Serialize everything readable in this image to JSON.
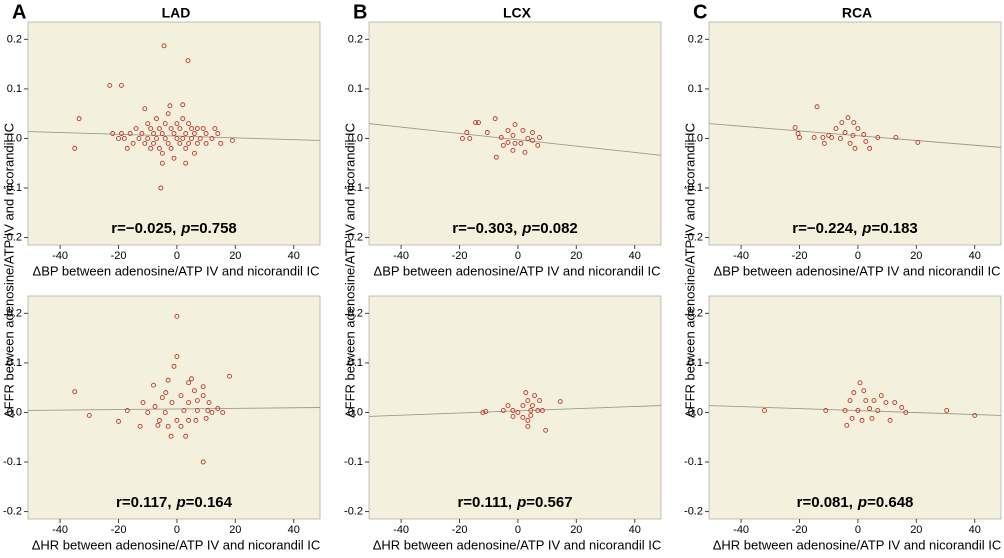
{
  "chart_data": [
    {
      "type": "scatter",
      "letter": "A",
      "title": "LAD",
      "y_label": "ΔFFR between adenosine/ATP IV and nicorandil IC",
      "x_label": "ΔBP between adenosine/ATP IV and nicorandil IC",
      "annotation": {
        "r": "r=−0.025,",
        "p": "p",
        "p_value": "=0.758"
      },
      "color": "#c0392b",
      "x": [
        -4.4,
        3.8,
        -23,
        -19,
        -33.5,
        -35,
        -11,
        -2.4,
        2,
        -5,
        -5.5,
        19,
        -22,
        -20,
        -18,
        -16,
        -15,
        -14,
        -13,
        -12,
        -11,
        -10,
        -10,
        -9,
        -9,
        -8,
        -8,
        -7,
        -7,
        -6,
        -6,
        -5,
        -5,
        -4,
        -4,
        -3,
        -3,
        -2,
        -2,
        -1,
        -1,
        0,
        0,
        1,
        1,
        2,
        2,
        3,
        3,
        4,
        4,
        5,
        5,
        6,
        6,
        7,
        7,
        8,
        9,
        10,
        10,
        12,
        13,
        14,
        15,
        -17,
        -19,
        3
      ],
      "values": [
        0.187,
        0.157,
        0.107,
        0.107,
        0.04,
        -0.02,
        0.06,
        0.066,
        0.068,
        -0.05,
        -0.1,
        -0.004,
        0.01,
        0,
        0,
        0.01,
        -0.01,
        0.02,
        0,
        0.01,
        -0.01,
        0.03,
        0,
        0.02,
        -0.02,
        0.01,
        -0.01,
        0.04,
        0,
        0.02,
        -0.02,
        0.01,
        -0.03,
        0.03,
        0,
        0.05,
        -0.01,
        0.02,
        -0.02,
        0.01,
        -0.04,
        0.03,
        0,
        0.02,
        -0.01,
        0.04,
        0,
        0.01,
        -0.02,
        0.03,
        -0.01,
        0.02,
        0,
        0.01,
        -0.03,
        0.02,
        -0.01,
        0,
        0.02,
        0.01,
        -0.01,
        0,
        0.02,
        0.01,
        -0.01,
        -0.02,
        0.01,
        -0.05
      ],
      "trend": {
        "x": [
          -51,
          49
        ],
        "values": [
          0.014,
          -0.004
        ]
      },
      "xlim": [
        -51,
        49
      ],
      "ylim": [
        -0.215,
        0.235
      ],
      "xticks": [
        -40,
        -20,
        0,
        20,
        40
      ],
      "yticks": [
        -0.2,
        -0.1,
        {
          "value": 0,
          "label": "0.0"
        },
        0.1,
        0.2
      ]
    },
    {
      "type": "scatter",
      "letter": "B",
      "title": "LCX",
      "y_label": "ΔFFR between adenosine/ATP IV and nicorandil IC",
      "x_label": "ΔBP between adenosine/ATP IV and nicorandil IC",
      "annotation": {
        "r": "r=−0.303,",
        "p": "p",
        "p_value": "=0.082"
      },
      "color": "#c0392b",
      "x": [
        -14.5,
        -13.5,
        -7.8,
        -17.5,
        -19,
        -16.5,
        -10.5,
        -7.4,
        -1,
        -3.4,
        -1.7,
        1.7,
        5,
        6.8,
        -5,
        -1.7,
        1,
        3.4,
        -5.7,
        5,
        7.4,
        -1,
        2.4,
        -3.4
      ],
      "values": [
        0.032,
        0.032,
        0.04,
        0.012,
        0,
        0,
        0.012,
        -0.038,
        0.028,
        0.016,
        0.006,
        0.016,
        0.012,
        -0.014,
        -0.014,
        -0.024,
        -0.01,
        0,
        0.002,
        -0.004,
        0.002,
        -0.01,
        -0.028,
        -0.008
      ],
      "trend": {
        "x": [
          -51,
          49
        ],
        "values": [
          0.03,
          -0.034
        ]
      },
      "xlim": [
        -51,
        49
      ],
      "ylim": [
        -0.215,
        0.235
      ],
      "xticks": [
        -40,
        -20,
        0,
        20,
        40
      ],
      "yticks": [
        -0.2,
        -0.1,
        {
          "value": 0,
          "label": "0.0"
        },
        0.1,
        0.2
      ]
    },
    {
      "type": "scatter",
      "letter": "C",
      "title": "RCA",
      "y_label": "ΔFFR between adenosine/ATP IV and nicorandil IC",
      "x_label": "ΔBP between adenosine/ATP IV and nicorandil IC",
      "annotation": {
        "r": "r=−0.224,",
        "p": "p",
        "p_value": "=0.183"
      },
      "color": "#c0392b",
      "x": [
        -14,
        -21.5,
        -20.5,
        -20,
        -15,
        -12,
        -11.5,
        -9,
        -5.5,
        -3.4,
        -1.4,
        -7.5,
        -4.4,
        -1.7,
        0,
        2,
        -2.7,
        -1,
        2.7,
        4,
        13,
        20.5,
        -10,
        -6,
        6.8
      ],
      "values": [
        0.064,
        0.022,
        0.01,
        0.002,
        0.002,
        0.002,
        -0.01,
        0.002,
        0.032,
        0.042,
        0.032,
        0.02,
        0.012,
        0.006,
        0.02,
        0.008,
        -0.01,
        -0.02,
        -0.006,
        -0.02,
        0.002,
        -0.008,
        0.006,
        0,
        0.002
      ],
      "trend": {
        "x": [
          -51,
          49
        ],
        "values": [
          0.03,
          -0.018
        ]
      },
      "xlim": [
        -51,
        49
      ],
      "ylim": [
        -0.215,
        0.235
      ],
      "xticks": [
        -40,
        -20,
        0,
        20,
        40
      ],
      "yticks": [
        -0.2,
        -0.1,
        {
          "value": 0,
          "label": "0.0"
        },
        0.1,
        0.2
      ]
    },
    {
      "type": "scatter",
      "x_label": "ΔHR between adenosine/ATP IV and nicorandil IC",
      "annotation": {
        "r": "r=0.117,",
        "p": "p",
        "p_value": "=0.164"
      },
      "color": "#c0392b",
      "x": [
        0,
        0,
        -35,
        -30,
        -20,
        -17,
        18,
        9,
        -2,
        3,
        -11.6,
        -8,
        -3,
        -1,
        4,
        -6,
        -10,
        -7.5,
        -4,
        1.4,
        6,
        9,
        11,
        14,
        7,
        2.4,
        -1.7,
        4,
        -3,
        1.4,
        6.5,
        10,
        0,
        -5,
        7,
        4,
        5,
        -6.5,
        9,
        10.6,
        12,
        15.7,
        -12.6,
        -3.8
      ],
      "values": [
        0.194,
        0.113,
        0.042,
        -0.006,
        -0.018,
        0.004,
        0.073,
        -0.1,
        -0.048,
        -0.048,
        0.02,
        0.055,
        0.065,
        0.093,
        0.06,
        -0.016,
        0,
        0.012,
        0,
        0.034,
        0.044,
        0.034,
        0.02,
        0.008,
        0.004,
        0.004,
        0.02,
        0.02,
        -0.028,
        -0.028,
        -0.016,
        -0.012,
        -0.016,
        0.03,
        0.024,
        -0.016,
        0.068,
        -0.026,
        0.052,
        0.004,
        0,
        0,
        -0.028,
        0.04
      ],
      "trend": {
        "x": [
          -51,
          49
        ],
        "values": [
          0.004,
          0.01
        ]
      },
      "xlim": [
        -51,
        49
      ],
      "ylim": [
        -0.215,
        0.235
      ],
      "xticks": [
        -40,
        -20,
        0,
        20,
        40
      ],
      "yticks": [
        -0.2,
        -0.1,
        {
          "value": 0,
          "label": "0.0"
        },
        0.1,
        0.2
      ]
    },
    {
      "type": "scatter",
      "x_label": "ΔHR between adenosine/ATP IV and nicorandil IC",
      "annotation": {
        "r": "r=0.111,",
        "p": "p",
        "p_value": "=0.567"
      },
      "color": "#c0392b",
      "x": [
        -12,
        -11,
        -5,
        -3.4,
        -1.7,
        0,
        1.7,
        2.7,
        3.4,
        4.4,
        5,
        5.7,
        6.8,
        3.4,
        3.4,
        4.4,
        8.4,
        9.5,
        7.4,
        14.5,
        1.7,
        -1.7
      ],
      "values": [
        0,
        0.002,
        0.004,
        0.014,
        0.004,
        0,
        0.014,
        0.04,
        0.024,
        0.004,
        0.014,
        0.034,
        0.004,
        -0.016,
        -0.028,
        -0.006,
        0.004,
        -0.036,
        0.024,
        0.022,
        -0.01,
        -0.008
      ],
      "trend": {
        "x": [
          -51,
          49
        ],
        "values": [
          -0.008,
          0.014
        ]
      },
      "xlim": [
        -51,
        49
      ],
      "ylim": [
        -0.215,
        0.235
      ],
      "xticks": [
        -40,
        -20,
        0,
        20,
        40
      ],
      "yticks": [
        -0.2,
        -0.1,
        {
          "value": 0,
          "label": "0.0"
        },
        0.1,
        0.2
      ]
    },
    {
      "type": "scatter",
      "x_label": "ΔHR between adenosine/ATP IV and nicorandil IC",
      "annotation": {
        "r": "r=0.081,",
        "p": "p",
        "p_value": "=0.648"
      },
      "color": "#c0392b",
      "x": [
        -32,
        -11,
        -4.4,
        -2.7,
        -1.4,
        0.7,
        2,
        2.7,
        -3.8,
        -2,
        0,
        4,
        5.5,
        6.8,
        8,
        9.6,
        11,
        12.6,
        15,
        16.4,
        30.4,
        40,
        1.4,
        4.8
      ],
      "values": [
        0.004,
        0.004,
        0.004,
        0.024,
        0.04,
        0.06,
        0.044,
        0.024,
        -0.026,
        -0.012,
        0.004,
        0.008,
        0.024,
        0.004,
        0.034,
        0.02,
        -0.016,
        0.02,
        0.01,
        0,
        0.004,
        -0.006,
        -0.016,
        -0.012
      ],
      "trend": {
        "x": [
          -51,
          49
        ],
        "values": [
          0.014,
          -0.006
        ]
      },
      "xlim": [
        -51,
        49
      ],
      "ylim": [
        -0.215,
        0.235
      ],
      "xticks": [
        -40,
        -20,
        0,
        20,
        40
      ],
      "yticks": [
        -0.2,
        -0.1,
        {
          "value": 0,
          "label": "0.0"
        },
        0.1,
        0.2
      ]
    }
  ]
}
